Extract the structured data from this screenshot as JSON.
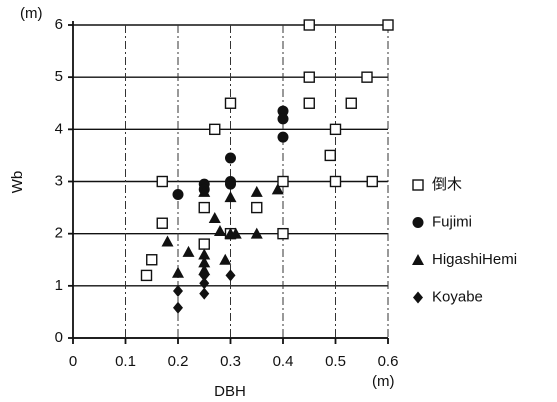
{
  "chart_data": {
    "type": "scatter",
    "xlabel": "DBH",
    "ylabel": "Wb",
    "x_unit": "(m)",
    "y_unit": "(m)",
    "xlim": [
      0,
      0.6
    ],
    "ylim": [
      0,
      6
    ],
    "xticks": [
      0,
      0.1,
      0.2,
      0.3,
      0.4,
      0.5,
      0.6
    ],
    "yticks": [
      0,
      1,
      2,
      3,
      4,
      5,
      6
    ],
    "grid": true,
    "legend": "right",
    "series": [
      {
        "name": "倒木",
        "color": "#111111",
        "marker": "square-open",
        "x": [
          0.14,
          0.15,
          0.17,
          0.17,
          0.25,
          0.25,
          0.27,
          0.3,
          0.3,
          0.35,
          0.4,
          0.4,
          0.45,
          0.45,
          0.45,
          0.49,
          0.5,
          0.5,
          0.53,
          0.56,
          0.57,
          0.6
        ],
        "values": [
          1.2,
          1.5,
          2.2,
          3.0,
          1.8,
          2.5,
          4.0,
          4.5,
          2.0,
          2.5,
          3.0,
          2.0,
          6.0,
          5.0,
          4.5,
          3.5,
          4.0,
          3.0,
          4.5,
          5.0,
          3.0,
          6.0
        ]
      },
      {
        "name": "Fujimi",
        "color": "#111111",
        "marker": "circle",
        "x": [
          0.2,
          0.25,
          0.25,
          0.3,
          0.3,
          0.3,
          0.4,
          0.4,
          0.4
        ],
        "values": [
          2.75,
          2.95,
          2.85,
          3.45,
          3.0,
          2.95,
          4.35,
          4.2,
          3.85
        ]
      },
      {
        "name": "HigashiHemi",
        "color": "#111111",
        "marker": "triangle",
        "x": [
          0.18,
          0.2,
          0.22,
          0.25,
          0.25,
          0.25,
          0.25,
          0.27,
          0.28,
          0.29,
          0.3,
          0.3,
          0.31,
          0.35,
          0.35,
          0.39
        ],
        "values": [
          1.85,
          1.25,
          1.65,
          1.6,
          1.45,
          1.3,
          2.8,
          2.3,
          2.05,
          1.5,
          2.0,
          2.7,
          2.0,
          2.0,
          2.8,
          2.85
        ]
      },
      {
        "name": "Koyabe",
        "color": "#111111",
        "marker": "diamond",
        "x": [
          0.2,
          0.2,
          0.25,
          0.25,
          0.25,
          0.3
        ],
        "values": [
          0.9,
          0.58,
          1.2,
          1.05,
          0.85,
          1.2
        ]
      }
    ]
  }
}
